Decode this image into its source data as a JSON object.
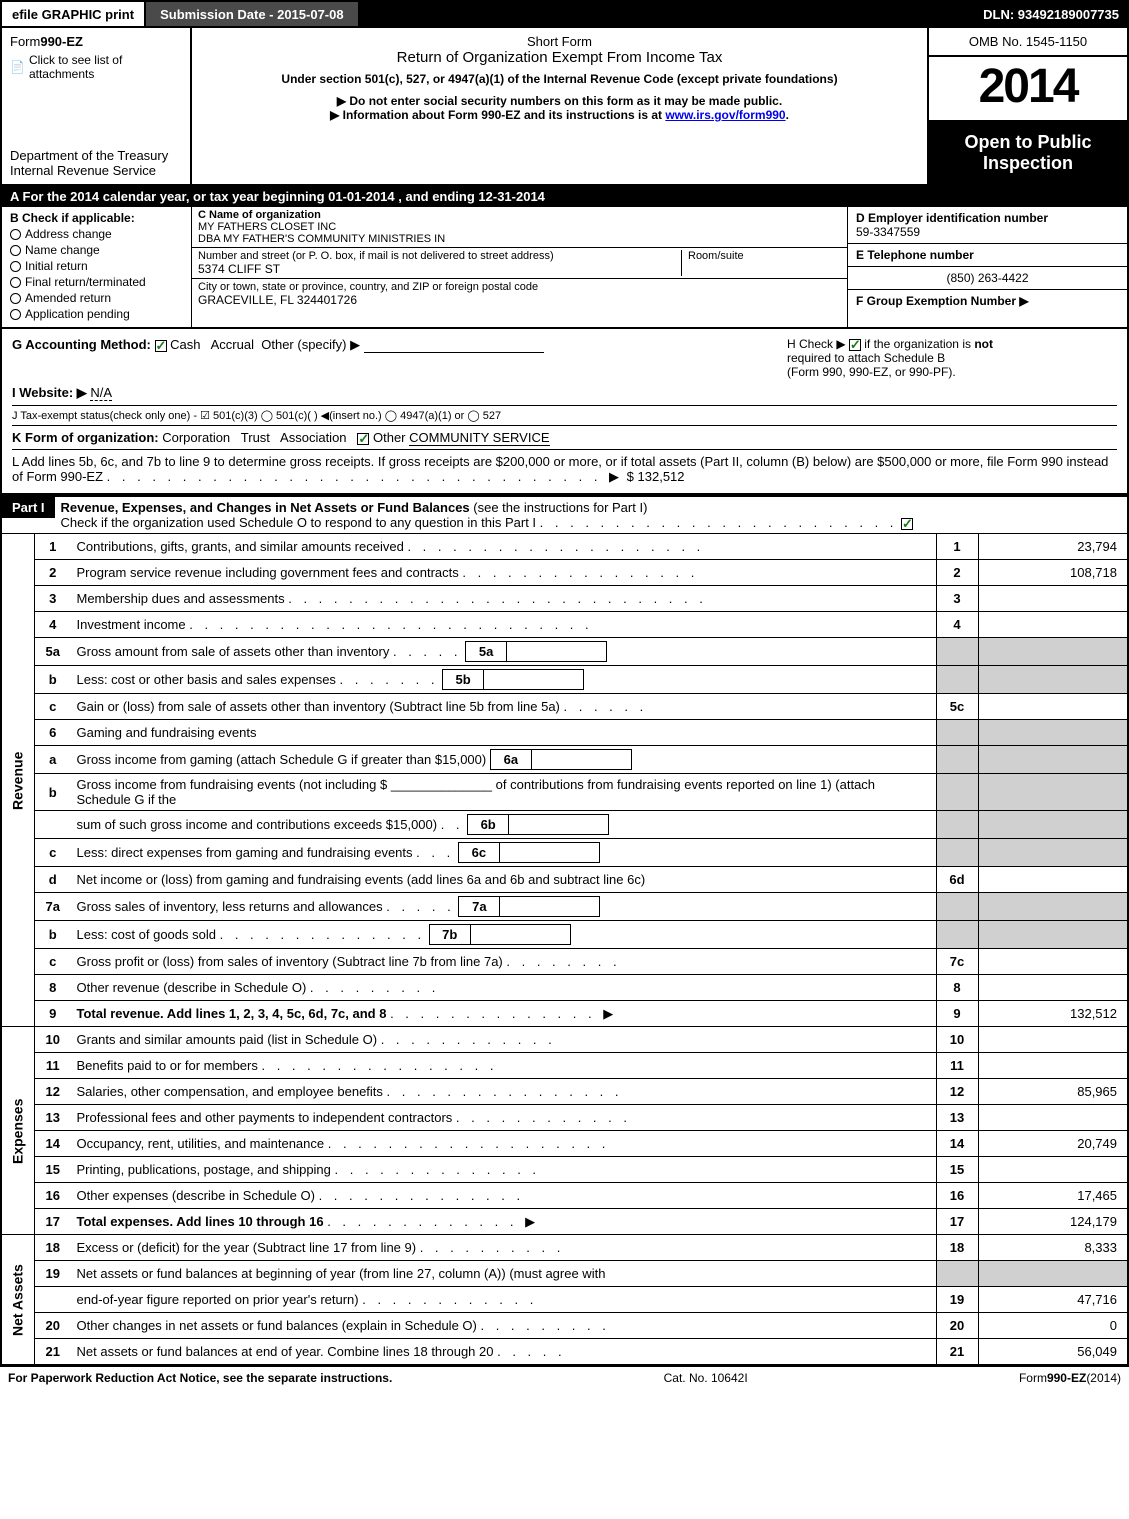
{
  "topbar": {
    "efile_label": "efile GRAPHIC print",
    "submission_label": "Submission Date - 2015-07-08",
    "dln_label": "DLN: 93492189007735"
  },
  "header": {
    "form_no_prefix": "Form",
    "form_no": "990-EZ",
    "attach_link": "Click to see list of attachments",
    "dept1": "Department of the Treasury",
    "dept2": "Internal Revenue Service",
    "short_form": "Short Form",
    "return_title": "Return of Organization Exempt From Income Tax",
    "under_section": "Under section 501(c), 527, or 4947(a)(1) of the Internal Revenue Code (except private foundations)",
    "warn1_prefix": "▶ Do not enter social security numbers on this form as it may be made public.",
    "warn2_prefix": "▶ Information about Form 990-EZ and its instructions is at ",
    "warn2_link": "www.irs.gov/form990",
    "warn2_suffix": ".",
    "omb": "OMB No. 1545-1150",
    "year": "2014",
    "open1": "Open to Public",
    "open2": "Inspection"
  },
  "lineA": "A  For the 2014 calendar year, or tax year beginning 01-01-2014           , and ending 12-31-2014",
  "colB": {
    "title": "B  Check if applicable:",
    "opts": [
      "Address change",
      "Name change",
      "Initial return",
      "Final return/terminated",
      "Amended return",
      "Application pending"
    ]
  },
  "colC": {
    "name_lbl": "C Name of organization",
    "name1": "MY FATHERS CLOSET INC",
    "name2": "DBA MY FATHER'S COMMUNITY MINISTRIES IN",
    "addr_lbl": "Number and street (or P. O. box, if mail is not delivered to street address)",
    "addr": "5374 CLIFF ST",
    "room_lbl": "Room/suite",
    "city_lbl": "City or town, state or province, country, and ZIP or foreign postal code",
    "city": "GRACEVILLE, FL  324401726"
  },
  "colD": {
    "lbl": "D Employer identification number",
    "val": "59-3347559"
  },
  "colE": {
    "lbl": "E Telephone number",
    "val": "(850) 263-4422"
  },
  "colF": {
    "lbl": "F Group Exemption Number  ▶",
    "val": ""
  },
  "rowG": {
    "lbl": "G Accounting Method:",
    "cash": "Cash",
    "accrual": "Accrual",
    "other": "Other (specify) ▶"
  },
  "rowH": {
    "text1": "H  Check ▶ ",
    "text2": " if the organization is ",
    "not": "not",
    "text3": " required to attach Schedule B",
    "text4": "(Form 990, 990-EZ, or 990-PF)."
  },
  "rowI": {
    "lbl": "I Website: ▶",
    "val": "N/A"
  },
  "rowJ": "J Tax-exempt status(check only one) - ☑ 501(c)(3) ◯ 501(c)(  ) ◀(insert no.) ◯ 4947(a)(1) or ◯ 527",
  "rowK": {
    "lbl": "K Form of organization:",
    "opts": [
      "Corporation",
      "Trust",
      "Association"
    ],
    "other_lbl": "Other",
    "other_val": "COMMUNITY SERVICE"
  },
  "rowL": {
    "text": "L Add lines 5b, 6c, and 7b to line 9 to determine gross receipts. If gross receipts are $200,000 or more, or if total assets (Part II, column (B) below) are $500,000 or more, file Form 990 instead of Form 990-EZ",
    "dots": ". . . . . . . . . . . . . . . . . . . . . . . . . . . . . . . . . ▶",
    "val": "$ 132,512"
  },
  "partI": {
    "label": "Part I",
    "title": "Revenue, Expenses, and Changes in Net Assets or Fund Balances",
    "title_suffix": " (see the instructions for Part I)",
    "check_line": "Check if the organization used Schedule O to respond to any question in this Part I",
    "check_dots": ". . . . . . . . . . . . . . . . . . . . . . . ."
  },
  "sections": {
    "revenue_label": "Revenue",
    "expenses_label": "Expenses",
    "netassets_label": "Net Assets"
  },
  "lines": [
    {
      "n": "1",
      "text": "Contributions, gifts, grants, and similar amounts received",
      "dots": ". . . . . . . . . . . . . . . . . . . .",
      "r": "1",
      "v": "23,794",
      "sec": "rev",
      "row": "simple"
    },
    {
      "n": "2",
      "text": "Program service revenue including government fees and contracts",
      "dots": ". . . . . . . . . . . . . . . .",
      "r": "2",
      "v": "108,718",
      "sec": "rev",
      "row": "simple"
    },
    {
      "n": "3",
      "text": "Membership dues and assessments",
      "dots": ". . . . . . . . . . . . . . . . . . . . . . . . . . . .",
      "r": "3",
      "v": "",
      "sec": "rev",
      "row": "simple"
    },
    {
      "n": "4",
      "text": "Investment income",
      "dots": ". . . . . . . . . . . . . . . . . . . . . . . . . . .",
      "r": "4",
      "v": "",
      "sec": "rev",
      "row": "simple"
    },
    {
      "n": "5a",
      "text": "Gross amount from sale of assets other than inventory",
      "dots": ". . . . .",
      "sub": "5a",
      "sv": "",
      "sec": "rev",
      "row": "sub"
    },
    {
      "n": "b",
      "text": "Less: cost or other basis and sales expenses",
      "dots": ". . . . . . .",
      "sub": "5b",
      "sv": "",
      "sec": "rev",
      "row": "sub"
    },
    {
      "n": "c",
      "text": "Gain or (loss) from sale of assets other than inventory (Subtract line 5b from line 5a)",
      "dots": ". . . . . .",
      "r": "5c",
      "v": "",
      "sec": "rev",
      "row": "simple"
    },
    {
      "n": "6",
      "text": "Gaming and fundraising events",
      "sec": "rev",
      "row": "header"
    },
    {
      "n": "a",
      "text": "Gross income from gaming (attach Schedule G if greater than $15,000)",
      "sub": "6a",
      "sv": "",
      "sec": "rev",
      "row": "sub"
    },
    {
      "n": "b",
      "text": "Gross income from fundraising events (not including $ ______________ of contributions from fundraising events reported on line 1) (attach Schedule G if the",
      "sec": "rev",
      "row": "textonly"
    },
    {
      "n": "",
      "text": "sum of such gross income and contributions exceeds $15,000)",
      "dots": ".  .",
      "sub": "6b",
      "sv": "",
      "sec": "rev",
      "row": "sub"
    },
    {
      "n": "c",
      "text": "Less: direct expenses from gaming and fundraising events",
      "dots": ".  .  .",
      "sub": "6c",
      "sv": "",
      "sec": "rev",
      "row": "sub"
    },
    {
      "n": "d",
      "text": "Net income or (loss) from gaming and fundraising events (add lines 6a and 6b and subtract line 6c)",
      "r": "6d",
      "v": "",
      "sec": "rev",
      "row": "simple"
    },
    {
      "n": "7a",
      "text": "Gross sales of inventory, less returns and allowances",
      "dots": ". . . . .",
      "sub": "7a",
      "sv": "",
      "sec": "rev",
      "row": "sub"
    },
    {
      "n": "b",
      "text": "Less: cost of goods sold",
      "dots": ".  .  .  .  .  .  .  .  .  .  .  .  .  .",
      "sub": "7b",
      "sv": "",
      "sec": "rev",
      "row": "sub"
    },
    {
      "n": "c",
      "text": "Gross profit or (loss) from sales of inventory (Subtract line 7b from line 7a)",
      "dots": ".  .  .  .  .  .  .  .",
      "r": "7c",
      "v": "",
      "sec": "rev",
      "row": "simple"
    },
    {
      "n": "8",
      "text": "Other revenue (describe in Schedule O)",
      "dots": ".  .  .  .  .  .  .  .  .",
      "r": "8",
      "v": "",
      "sec": "rev",
      "row": "simple"
    },
    {
      "n": "9",
      "text": "Total revenue. Add lines 1, 2, 3, 4, 5c, 6d, 7c, and 8",
      "bold": true,
      "dots": ".  .  .  .  .  .  .  .  .  .  .  .  .  .   ▶",
      "r": "9",
      "v": "132,512",
      "sec": "rev",
      "row": "simple"
    },
    {
      "n": "10",
      "text": "Grants and similar amounts paid (list in Schedule O)",
      "dots": ".  .  .  .  .  .  .  .  .  .  .  .",
      "r": "10",
      "v": "",
      "sec": "exp",
      "row": "simple"
    },
    {
      "n": "11",
      "text": "Benefits paid to or for members",
      "dots": ".  .  .  .  .  .  .  .  .  .  .  .  .  .  .  .",
      "r": "11",
      "v": "",
      "sec": "exp",
      "row": "simple"
    },
    {
      "n": "12",
      "text": "Salaries, other compensation, and employee benefits",
      "dots": ".  .  .  .  .  .  .  .  .  .  .  .  .  .  .  .",
      "r": "12",
      "v": "85,965",
      "sec": "exp",
      "row": "simple"
    },
    {
      "n": "13",
      "text": "Professional fees and other payments to independent contractors",
      "dots": ".  .  .  .  .  .  .  .  .  .  .  .",
      "r": "13",
      "v": "",
      "sec": "exp",
      "row": "simple"
    },
    {
      "n": "14",
      "text": "Occupancy, rent, utilities, and maintenance",
      "dots": ".  .  .  .  .  .  .  .  .  .  .  .  .  .  .  .  .  .  .",
      "r": "14",
      "v": "20,749",
      "sec": "exp",
      "row": "simple"
    },
    {
      "n": "15",
      "text": "Printing, publications, postage, and shipping",
      "dots": ".  .  .  .  .  .  .  .  .  .  .  .  .  .",
      "r": "15",
      "v": "",
      "sec": "exp",
      "row": "simple"
    },
    {
      "n": "16",
      "text": "Other expenses (describe in Schedule O)",
      "dots": ".  .  .  .  .  .  .  .  .  .  .  .  .  .",
      "r": "16",
      "v": "17,465",
      "sec": "exp",
      "row": "simple"
    },
    {
      "n": "17",
      "text": "Total expenses. Add lines 10 through 16",
      "bold": true,
      "dots": ".  .  .  .  .  .  .  .  .  .  .  .  .   ▶",
      "r": "17",
      "v": "124,179",
      "sec": "exp",
      "row": "simple"
    },
    {
      "n": "18",
      "text": "Excess or (deficit) for the year (Subtract line 17 from line 9)",
      "dots": ".  .  .  .  .  .  .  .  .  .",
      "r": "18",
      "v": "8,333",
      "sec": "net",
      "row": "simple"
    },
    {
      "n": "19",
      "text": "Net assets or fund balances at beginning of year (from line 27, column (A)) (must agree with",
      "sec": "net",
      "row": "textonly"
    },
    {
      "n": "",
      "text": "end-of-year figure reported on prior year's return)",
      "dots": ".  .  .  .  .  .  .  .  .  .  .  .",
      "r": "19",
      "v": "47,716",
      "sec": "net",
      "row": "simple"
    },
    {
      "n": "20",
      "text": "Other changes in net assets or fund balances (explain in Schedule O)",
      "dots": ".  .  .  .  .  .  .  .  .",
      "r": "20",
      "v": "0",
      "sec": "net",
      "row": "simple"
    },
    {
      "n": "21",
      "text": "Net assets or fund balances at end of year. Combine lines 18 through 20",
      "dots": ".  .  .  .  .",
      "r": "21",
      "v": "56,049",
      "sec": "net",
      "row": "simple"
    }
  ],
  "footer": {
    "left": "For Paperwork Reduction Act Notice, see the separate instructions.",
    "center": "Cat. No. 10642I",
    "right_prefix": "Form",
    "right_form": "990-EZ",
    "right_year": "(2014)"
  }
}
